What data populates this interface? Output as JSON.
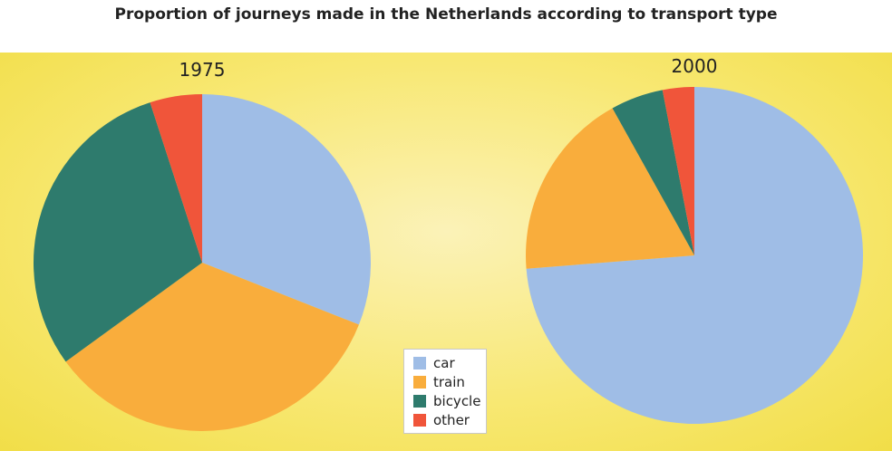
{
  "title": "Proportion of journeys made in the Netherlands according to transport type",
  "colors": {
    "car": "#9fbde6",
    "train": "#f9ad3c",
    "bicycle": "#2e7b6d",
    "other": "#f0553a"
  },
  "legend": [
    {
      "label": "car",
      "color": "#9fbde6"
    },
    {
      "label": "train",
      "color": "#f9ad3c"
    },
    {
      "label": "bicycle",
      "color": "#2e7b6d"
    },
    {
      "label": "other",
      "color": "#f0553a"
    }
  ],
  "chart_data": [
    {
      "type": "pie",
      "title": "1975",
      "categories": [
        "car",
        "train",
        "bicycle",
        "other"
      ],
      "values": [
        31,
        34,
        30,
        5
      ]
    },
    {
      "type": "pie",
      "title": "2000",
      "categories": [
        "car",
        "train",
        "bicycle",
        "other"
      ],
      "values": [
        73,
        18,
        5,
        3
      ]
    }
  ]
}
